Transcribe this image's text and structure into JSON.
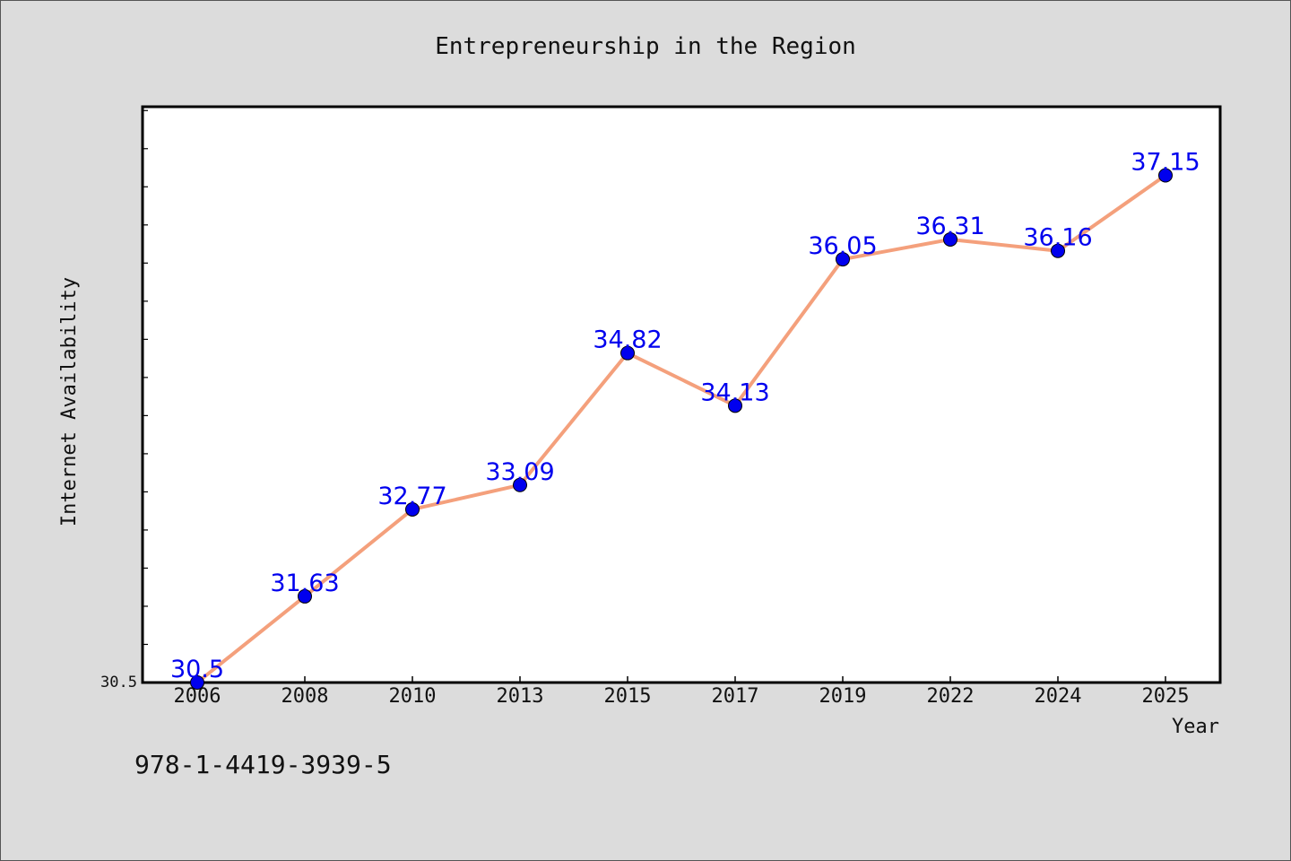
{
  "chart_data": {
    "type": "line",
    "title": "Entrepreneurship in the Region",
    "xlabel": "Year",
    "ylabel": "Internet Availability",
    "categories": [
      "2006",
      "2008",
      "2010",
      "2013",
      "2015",
      "2017",
      "2019",
      "2022",
      "2024",
      "2025"
    ],
    "series": [
      {
        "values": [
          30.5,
          31.63,
          32.77,
          33.09,
          34.82,
          34.13,
          36.05,
          36.31,
          36.16,
          37.15
        ],
        "labels": [
          "30.5",
          "31.63",
          "32.77",
          "33.09",
          "34.82",
          "34.13",
          "36.05",
          "36.31",
          "36.16",
          "37.15"
        ]
      }
    ],
    "ylim": [
      30.5,
      38.05
    ],
    "yticks_labeled": [
      "30.5"
    ],
    "grid": false,
    "legend": "none",
    "colors": {
      "line": "#f4a07c",
      "marker": "#0000ee",
      "data_label": "#0000ee",
      "plot_bg": "#ffffff",
      "page_bg": "#dcdcdc"
    }
  },
  "footer_text": "978-1-4419-3939-5"
}
